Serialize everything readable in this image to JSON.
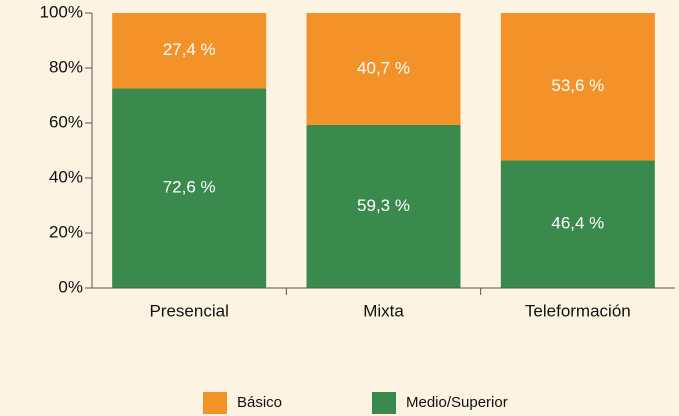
{
  "chart_data": {
    "type": "stacked_bar",
    "categories": [
      "Presencial",
      "Mixta",
      "Teleformación"
    ],
    "series": [
      {
        "name": "Básico",
        "color": "#f4922a",
        "values": [
          27.4,
          40.7,
          53.6
        ],
        "value_labels": [
          "27,4 %",
          "40,7 %",
          "53,6 %"
        ]
      },
      {
        "name": "Medio/Superior",
        "color": "#3a8a4e",
        "values": [
          72.6,
          59.3,
          46.4
        ],
        "value_labels": [
          "72,6 %",
          "59,3 %",
          "46,4 %"
        ]
      }
    ],
    "ylim": [
      0,
      100
    ],
    "yticks": [
      {
        "value": 0,
        "label": "0%"
      },
      {
        "value": 20,
        "label": "20%"
      },
      {
        "value": 40,
        "label": "40%"
      },
      {
        "value": 60,
        "label": "60%"
      },
      {
        "value": 80,
        "label": "80%"
      },
      {
        "value": 100,
        "label": "100%"
      }
    ],
    "legend": "bottom"
  }
}
